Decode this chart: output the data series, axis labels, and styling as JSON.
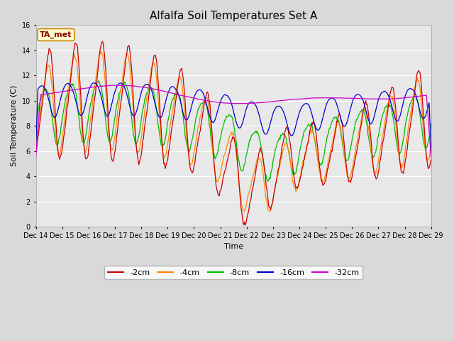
{
  "title": "Alfalfa Soil Temperatures Set A",
  "xlabel": "Time",
  "ylabel": "Soil Temperature (C)",
  "ylim": [
    0,
    16
  ],
  "yticks": [
    0,
    2,
    4,
    6,
    8,
    10,
    12,
    14,
    16
  ],
  "figsize": [
    6.4,
    4.8
  ],
  "dpi": 100,
  "background_color": "#d9d9d9",
  "axes_bg_color": "#e8e8e8",
  "colors": {
    "-2cm": "#cc0000",
    "-4cm": "#ff8800",
    "-8cm": "#00bb00",
    "-16cm": "#0000cc",
    "-32cm": "#cc00cc"
  },
  "x_tick_labels": [
    "Dec 14",
    "Dec 15",
    "Dec 16",
    "Dec 17",
    "Dec 18",
    "Dec 19",
    "Dec 20",
    "Dec 21",
    "Dec 22",
    "Dec 23",
    "Dec 24",
    "Dec 25",
    "Dec 26",
    "Dec 27",
    "Dec 28",
    "Dec 29"
  ],
  "ta_met_facecolor": "#ffffcc",
  "ta_met_edgecolor": "#cc8800",
  "ta_met_textcolor": "#8b0000"
}
